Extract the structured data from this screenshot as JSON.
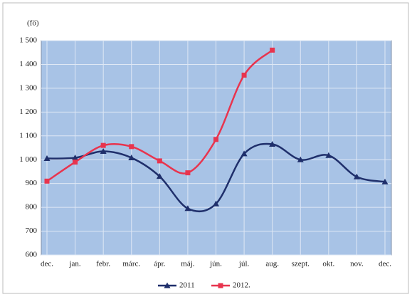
{
  "chart_data": {
    "type": "line",
    "y_label": "(fő)",
    "categories": [
      "dec.",
      "jan.",
      "febr.",
      "márc.",
      "ápr.",
      "máj.",
      "jún.",
      "júl.",
      "aug.",
      "szept.",
      "okt.",
      "nov.",
      "dec."
    ],
    "series": [
      {
        "name": "2011",
        "color": "#1f2f6b",
        "marker": "triangle",
        "values": [
          1005,
          1008,
          1035,
          1008,
          930,
          795,
          815,
          1025,
          1065,
          1000,
          1018,
          928,
          907
        ]
      },
      {
        "name": "2012.",
        "color": "#e8344e",
        "marker": "square",
        "values": [
          910,
          990,
          1060,
          1055,
          995,
          945,
          1085,
          1355,
          1460,
          null,
          null,
          null,
          null
        ]
      }
    ],
    "ylim": [
      600,
      1500
    ],
    "yticks": [
      600,
      700,
      800,
      900,
      {
        "value": 1000,
        "label": "1 000"
      },
      {
        "value": 1100,
        "label": "1 100"
      },
      {
        "value": 1200,
        "label": "1 200"
      },
      {
        "value": 1300,
        "label": "1 300"
      },
      {
        "value": 1400,
        "label": "1 400"
      },
      {
        "value": 1500,
        "label": "1 500"
      }
    ],
    "grid": true,
    "smooth": true,
    "legend": "bottom"
  }
}
